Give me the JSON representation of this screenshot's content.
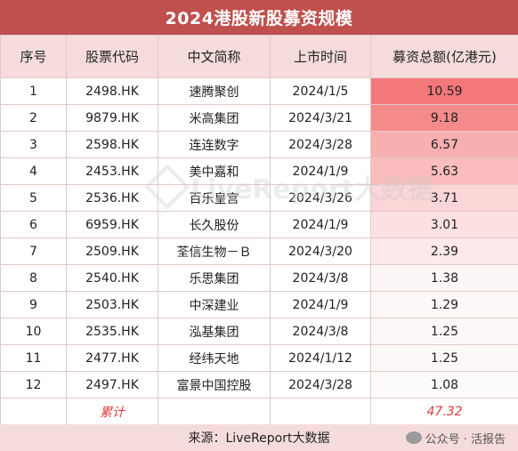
{
  "title": "2024港股新股募资规模",
  "headers": [
    "序号",
    "股票代码",
    "中文简称",
    "上市时间",
    "募资总额(亿港元)"
  ],
  "rows": [
    {
      "no": "1",
      "code": "2498.HK",
      "name": "速腾聚创",
      "date": "2024/1/5",
      "amount": "10.59",
      "bg": "#f4777a"
    },
    {
      "no": "2",
      "code": "9879.HK",
      "name": "米高集团",
      "date": "2024/3/21",
      "amount": "9.18",
      "bg": "#f58a8b"
    },
    {
      "no": "3",
      "code": "2598.HK",
      "name": "连连数字",
      "date": "2024/3/28",
      "amount": "6.57",
      "bg": "#f8afaf"
    },
    {
      "no": "4",
      "code": "2453.HK",
      "name": "美中嘉和",
      "date": "2024/1/9",
      "amount": "5.63",
      "bg": "#fabcbc"
    },
    {
      "no": "5",
      "code": "2536.HK",
      "name": "百乐皇宫",
      "date": "2024/3/26",
      "amount": "3.71",
      "bg": "#fcd6d6"
    },
    {
      "no": "6",
      "code": "6959.HK",
      "name": "长久股份",
      "date": "2024/1/9",
      "amount": "3.01",
      "bg": "#fde0e0"
    },
    {
      "no": "7",
      "code": "2509.HK",
      "name": "荃信生物－Ｂ",
      "date": "2024/3/20",
      "amount": "2.39",
      "bg": "#fde9e9"
    },
    {
      "no": "8",
      "code": "2540.HK",
      "name": "乐思集团",
      "date": "2024/3/8",
      "amount": "1.38",
      "bg": "#fdf6f6"
    },
    {
      "no": "9",
      "code": "2503.HK",
      "name": "中深建业",
      "date": "2024/1/9",
      "amount": "1.29",
      "bg": "#fdf7f7"
    },
    {
      "no": "10",
      "code": "2535.HK",
      "name": "泓基集团",
      "date": "2024/3/8",
      "amount": "1.25",
      "bg": "#fdf8f8"
    },
    {
      "no": "11",
      "code": "2477.HK",
      "name": "经纬天地",
      "date": "2024/1/12",
      "amount": "1.25",
      "bg": "#fdf8f8"
    },
    {
      "no": "12",
      "code": "2497.HK",
      "name": "富景中国控股",
      "date": "2024/3/28",
      "amount": "1.08",
      "bg": "#fdfafa"
    }
  ],
  "total": {
    "label": "累计",
    "value": "47.32"
  },
  "source": "来源：LiveReport大数据",
  "watermark": "LiveReport大数据",
  "wechat": "公众号 · 活报告"
}
